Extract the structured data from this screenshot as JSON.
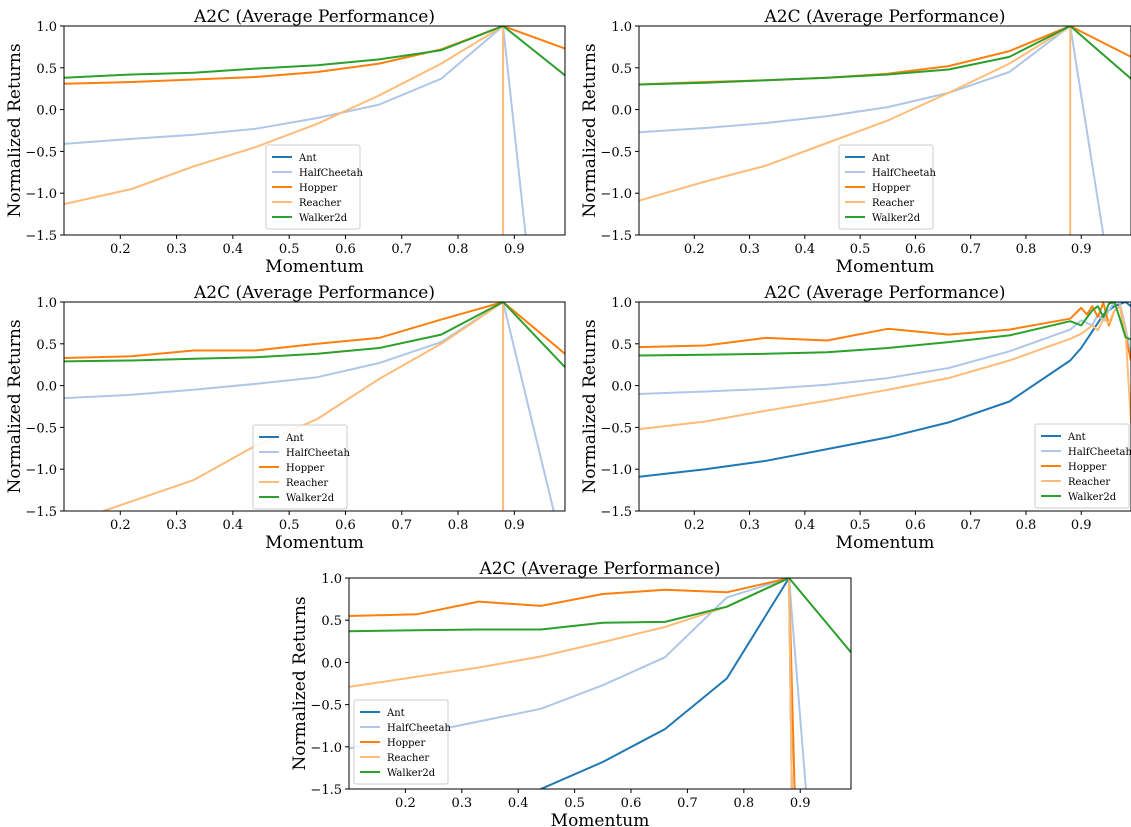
{
  "chart_data": [
    {
      "type": "line",
      "title": "A2C (Average Performance)",
      "xlabel": "Momentum",
      "ylabel": "Normalized Returns",
      "xlim": [
        0.1,
        0.99
      ],
      "ylim": [
        -1.5,
        1.0
      ],
      "xticks": [
        "0.2",
        "0.3",
        "0.4",
        "0.5",
        "0.6",
        "0.7",
        "0.8",
        "0.9"
      ],
      "yticks": [
        "-1.5",
        "-1.0",
        "-0.5",
        "0.0",
        "0.5",
        "1.0"
      ],
      "legend": "lower-center",
      "series": [
        {
          "name": "Ant",
          "color": "#1f77b4",
          "x": [],
          "y": []
        },
        {
          "name": "HalfCheetah",
          "color": "#aec7e8",
          "x": [
            0.1,
            0.22,
            0.33,
            0.44,
            0.55,
            0.66,
            0.77,
            0.88,
            0.92
          ],
          "y": [
            -0.41,
            -0.35,
            -0.3,
            -0.23,
            -0.1,
            0.06,
            0.37,
            1.0,
            -1.5
          ]
        },
        {
          "name": "Hopper",
          "color": "#ff7f0e",
          "x": [
            0.1,
            0.22,
            0.33,
            0.44,
            0.55,
            0.66,
            0.77,
            0.88,
            0.99
          ],
          "y": [
            0.31,
            0.33,
            0.36,
            0.39,
            0.45,
            0.55,
            0.72,
            1.0,
            0.73
          ]
        },
        {
          "name": "Reacher",
          "color": "#ffbb78",
          "x": [
            0.1,
            0.22,
            0.33,
            0.44,
            0.55,
            0.66,
            0.77,
            0.88,
            0.88
          ],
          "y": [
            -1.13,
            -0.95,
            -0.68,
            -0.45,
            -0.17,
            0.17,
            0.55,
            1.0,
            -1.5
          ]
        },
        {
          "name": "Walker2d",
          "color": "#2ca02c",
          "x": [
            0.1,
            0.22,
            0.33,
            0.44,
            0.55,
            0.66,
            0.77,
            0.88,
            0.99
          ],
          "y": [
            0.38,
            0.42,
            0.44,
            0.49,
            0.53,
            0.6,
            0.71,
            1.0,
            0.41
          ]
        }
      ]
    },
    {
      "type": "line",
      "title": "A2C (Average Performance)",
      "xlabel": "Momentum",
      "ylabel": "Normalized Returns",
      "xlim": [
        0.1,
        0.99
      ],
      "ylim": [
        -1.5,
        1.0
      ],
      "xticks": [
        "0.2",
        "0.3",
        "0.4",
        "0.5",
        "0.6",
        "0.7",
        "0.8",
        "0.9"
      ],
      "yticks": [
        "-1.5",
        "-1.0",
        "-0.5",
        "0.0",
        "0.5",
        "1.0"
      ],
      "legend": "lower-center",
      "series": [
        {
          "name": "Ant",
          "color": "#1f77b4",
          "x": [],
          "y": []
        },
        {
          "name": "HalfCheetah",
          "color": "#aec7e8",
          "x": [
            0.1,
            0.22,
            0.33,
            0.44,
            0.55,
            0.66,
            0.77,
            0.88,
            0.94
          ],
          "y": [
            -0.27,
            -0.22,
            -0.16,
            -0.08,
            0.03,
            0.2,
            0.45,
            1.0,
            -1.5
          ]
        },
        {
          "name": "Hopper",
          "color": "#ff7f0e",
          "x": [
            0.1,
            0.22,
            0.33,
            0.44,
            0.55,
            0.66,
            0.77,
            0.88,
            0.99
          ],
          "y": [
            0.3,
            0.33,
            0.35,
            0.38,
            0.43,
            0.52,
            0.7,
            1.0,
            0.63
          ]
        },
        {
          "name": "Reacher",
          "color": "#ffbb78",
          "x": [
            0.1,
            0.22,
            0.33,
            0.44,
            0.55,
            0.66,
            0.77,
            0.88,
            0.88
          ],
          "y": [
            -1.09,
            -0.86,
            -0.67,
            -0.4,
            -0.13,
            0.2,
            0.55,
            1.0,
            -1.5
          ]
        },
        {
          "name": "Walker2d",
          "color": "#2ca02c",
          "x": [
            0.1,
            0.22,
            0.33,
            0.44,
            0.55,
            0.66,
            0.77,
            0.88,
            0.99
          ],
          "y": [
            0.3,
            0.32,
            0.35,
            0.38,
            0.42,
            0.48,
            0.63,
            1.0,
            0.37
          ]
        }
      ]
    },
    {
      "type": "line",
      "title": "A2C (Average Performance)",
      "xlabel": "Momentum",
      "ylabel": "Normalized Returns",
      "xlim": [
        0.1,
        0.99
      ],
      "ylim": [
        -1.5,
        1.0
      ],
      "xticks": [
        "0.2",
        "0.3",
        "0.4",
        "0.5",
        "0.6",
        "0.7",
        "0.8",
        "0.9"
      ],
      "yticks": [
        "-1.5",
        "-1.0",
        "-0.5",
        "0.0",
        "0.5",
        "1.0"
      ],
      "legend": "lower-center",
      "series": [
        {
          "name": "Ant",
          "color": "#1f77b4",
          "x": [],
          "y": []
        },
        {
          "name": "HalfCheetah",
          "color": "#aec7e8",
          "x": [
            0.1,
            0.22,
            0.33,
            0.44,
            0.55,
            0.66,
            0.77,
            0.88,
            0.97
          ],
          "y": [
            -0.15,
            -0.11,
            -0.05,
            0.02,
            0.1,
            0.27,
            0.52,
            1.0,
            -1.5
          ]
        },
        {
          "name": "Hopper",
          "color": "#ff7f0e",
          "x": [
            0.1,
            0.22,
            0.33,
            0.44,
            0.55,
            0.66,
            0.77,
            0.88,
            0.99
          ],
          "y": [
            0.33,
            0.35,
            0.42,
            0.42,
            0.5,
            0.57,
            0.79,
            1.0,
            0.38
          ]
        },
        {
          "name": "Reacher",
          "color": "#ffbb78",
          "x": [
            0.17,
            0.33,
            0.44,
            0.55,
            0.66,
            0.77,
            0.88,
            0.88
          ],
          "y": [
            -1.5,
            -1.13,
            -0.72,
            -0.4,
            0.08,
            0.5,
            1.0,
            -1.5
          ]
        },
        {
          "name": "Walker2d",
          "color": "#2ca02c",
          "x": [
            0.1,
            0.22,
            0.33,
            0.44,
            0.55,
            0.66,
            0.77,
            0.88,
            0.99
          ],
          "y": [
            0.29,
            0.3,
            0.32,
            0.34,
            0.38,
            0.45,
            0.61,
            1.0,
            0.22
          ]
        }
      ]
    },
    {
      "type": "line",
      "title": "A2C (Average Performance)",
      "xlabel": "Momentum",
      "ylabel": "Normalized Returns",
      "xlim": [
        0.1,
        0.99
      ],
      "ylim": [
        -1.5,
        1.0
      ],
      "xticks": [
        "0.2",
        "0.3",
        "0.4",
        "0.5",
        "0.6",
        "0.7",
        "0.8",
        "0.9"
      ],
      "yticks": [
        "-1.5",
        "-1.0",
        "-0.5",
        "0.0",
        "0.5",
        "1.0"
      ],
      "legend": "lower-right",
      "series": [
        {
          "name": "Ant",
          "color": "#1f77b4",
          "x": [
            0.1,
            0.22,
            0.33,
            0.44,
            0.55,
            0.66,
            0.77,
            0.88,
            0.9,
            0.92,
            0.94,
            0.96,
            0.98,
            0.99
          ],
          "y": [
            -1.09,
            -1.0,
            -0.9,
            -0.76,
            -0.62,
            -0.44,
            -0.19,
            0.3,
            0.45,
            0.65,
            0.85,
            0.95,
            1.0,
            0.95
          ]
        },
        {
          "name": "HalfCheetah",
          "color": "#aec7e8",
          "x": [
            0.1,
            0.22,
            0.33,
            0.44,
            0.55,
            0.66,
            0.77,
            0.88,
            0.9,
            0.92,
            0.93,
            0.94,
            0.95,
            0.96,
            0.97,
            0.98,
            0.99
          ],
          "y": [
            -0.1,
            -0.07,
            -0.04,
            0.01,
            0.09,
            0.21,
            0.41,
            0.67,
            0.78,
            0.72,
            0.85,
            0.78,
            0.9,
            1.0,
            0.98,
            0.7,
            0.35
          ]
        },
        {
          "name": "Hopper",
          "color": "#ff7f0e",
          "x": [
            0.1,
            0.22,
            0.33,
            0.44,
            0.55,
            0.66,
            0.77,
            0.88,
            0.9,
            0.91,
            0.92,
            0.93,
            0.94,
            0.95,
            0.96,
            0.97,
            0.98,
            0.99
          ],
          "y": [
            0.46,
            0.48,
            0.57,
            0.54,
            0.68,
            0.61,
            0.67,
            0.8,
            0.93,
            0.85,
            0.95,
            0.82,
            0.99,
            0.72,
            0.9,
            0.95,
            0.6,
            0.3
          ]
        },
        {
          "name": "Reacher",
          "color": "#ffbb78",
          "x": [
            0.1,
            0.22,
            0.33,
            0.44,
            0.55,
            0.66,
            0.77,
            0.88,
            0.9,
            0.92,
            0.93,
            0.94,
            0.95,
            0.96,
            0.97,
            0.98,
            0.99
          ],
          "y": [
            -0.52,
            -0.43,
            -0.3,
            -0.18,
            -0.05,
            0.09,
            0.3,
            0.56,
            0.62,
            0.72,
            0.66,
            0.8,
            0.75,
            0.9,
            0.95,
            0.65,
            -0.45
          ]
        },
        {
          "name": "Walker2d",
          "color": "#2ca02c",
          "x": [
            0.1,
            0.22,
            0.33,
            0.44,
            0.55,
            0.66,
            0.77,
            0.88,
            0.9,
            0.92,
            0.93,
            0.94,
            0.95,
            0.96,
            0.97,
            0.98,
            0.99
          ],
          "y": [
            0.36,
            0.37,
            0.38,
            0.4,
            0.45,
            0.52,
            0.6,
            0.77,
            0.72,
            0.9,
            0.95,
            0.82,
            0.98,
            1.0,
            0.8,
            0.58,
            0.55
          ]
        }
      ]
    },
    {
      "type": "line",
      "title": "A2C (Average Performance)",
      "xlabel": "Momentum",
      "ylabel": "Normalized Returns",
      "xlim": [
        0.1,
        0.99
      ],
      "ylim": [
        -1.5,
        1.0
      ],
      "xticks": [
        "0.2",
        "0.3",
        "0.4",
        "0.5",
        "0.6",
        "0.7",
        "0.8",
        "0.9"
      ],
      "yticks": [
        "-1.5",
        "-1.0",
        "-0.5",
        "0.0",
        "0.5",
        "1.0"
      ],
      "legend": "lower-left",
      "series": [
        {
          "name": "Ant",
          "color": "#1f77b4",
          "x": [
            0.44,
            0.55,
            0.66,
            0.77,
            0.88,
            0.885
          ],
          "y": [
            -1.5,
            -1.18,
            -0.79,
            -0.19,
            1.0,
            -1.5
          ]
        },
        {
          "name": "HalfCheetah",
          "color": "#aec7e8",
          "x": [
            0.1,
            0.22,
            0.33,
            0.44,
            0.55,
            0.66,
            0.77,
            0.88,
            0.91
          ],
          "y": [
            -1.02,
            -0.85,
            -0.7,
            -0.55,
            -0.27,
            0.06,
            0.77,
            1.0,
            -1.5
          ]
        },
        {
          "name": "Hopper",
          "color": "#ff7f0e",
          "x": [
            0.1,
            0.22,
            0.33,
            0.44,
            0.55,
            0.66,
            0.77,
            0.88,
            0.89
          ],
          "y": [
            0.55,
            0.57,
            0.72,
            0.67,
            0.81,
            0.86,
            0.83,
            1.0,
            -1.5
          ]
        },
        {
          "name": "Reacher",
          "color": "#ffbb78",
          "x": [
            0.1,
            0.22,
            0.33,
            0.44,
            0.55,
            0.66,
            0.77,
            0.88,
            0.885
          ],
          "y": [
            -0.29,
            -0.17,
            -0.06,
            0.07,
            0.24,
            0.42,
            0.66,
            1.0,
            -1.5
          ]
        },
        {
          "name": "Walker2d",
          "color": "#2ca02c",
          "x": [
            0.1,
            0.22,
            0.33,
            0.44,
            0.55,
            0.66,
            0.77,
            0.88,
            0.99
          ],
          "y": [
            0.37,
            0.38,
            0.39,
            0.39,
            0.47,
            0.48,
            0.66,
            1.0,
            0.12
          ]
        }
      ]
    }
  ]
}
